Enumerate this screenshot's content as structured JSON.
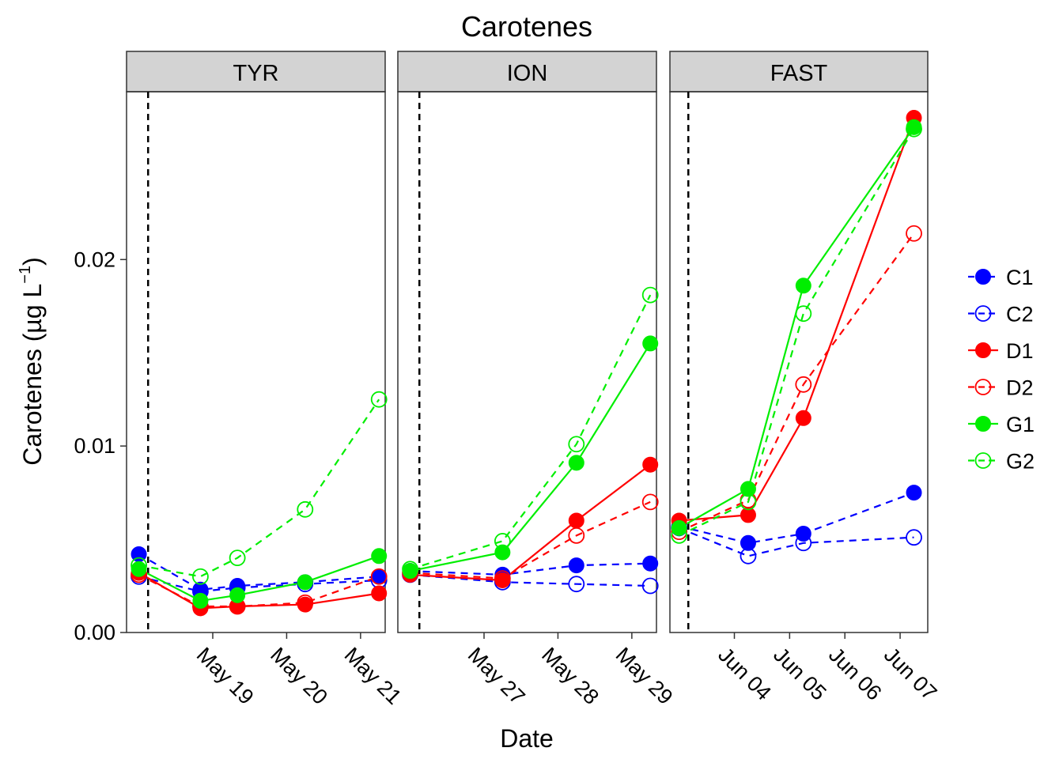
{
  "chart_data": {
    "type": "line",
    "title": "Carotenes",
    "xlabel": "Date",
    "ylabel": "Carotenes (µg L⁻¹)",
    "ylabel_main": "Carotenes (",
    "ylabel_unit": "µg L",
    "ylabel_exp": "−1",
    "ylabel_close": ")",
    "ylim": [
      0,
      0.029
    ],
    "yticks": [
      {
        "value": 0.0,
        "label": "0.00"
      },
      {
        "value": 0.01,
        "label": "0.01"
      },
      {
        "value": 0.02,
        "label": "0.02"
      }
    ],
    "grid": false,
    "legend_position": "right",
    "colors": {
      "C": "#0000ff",
      "D": "#ff0000",
      "G": "#00ee00"
    },
    "legend": [
      {
        "name": "C1",
        "color": "#0000ff",
        "filled": true,
        "dashed": true
      },
      {
        "name": "C2",
        "color": "#0000ff",
        "filled": false,
        "dashed": true
      },
      {
        "name": "D1",
        "color": "#ff0000",
        "filled": true,
        "dashed": false
      },
      {
        "name": "D2",
        "color": "#ff0000",
        "filled": false,
        "dashed": true
      },
      {
        "name": "G1",
        "color": "#00ee00",
        "filled": true,
        "dashed": false
      },
      {
        "name": "G2",
        "color": "#00ee00",
        "filled": false,
        "dashed": true
      }
    ],
    "panels": [
      {
        "label": "TYR",
        "xlim": [
          "2017-05-17T20:00",
          "2017-05-21T08:00"
        ],
        "xticks": [
          {
            "value": "2017-05-19T00:00",
            "label": "May 19"
          },
          {
            "value": "2017-05-20T00:00",
            "label": "May 20"
          },
          {
            "value": "2017-05-21T00:00",
            "label": "May 21"
          }
        ],
        "vline": "2017-05-18T03:00",
        "series": [
          {
            "name": "C1",
            "x": [
              "2017-05-18T00:00",
              "2017-05-18T20:00",
              "2017-05-19T08:00",
              "2017-05-20T06:00",
              "2017-05-21T06:00"
            ],
            "y": [
              0.0042,
              0.0023,
              0.0025,
              0.0027,
              0.003
            ]
          },
          {
            "name": "C2",
            "x": [
              "2017-05-18T00:00",
              "2017-05-18T20:00",
              "2017-05-19T08:00",
              "2017-05-20T06:00",
              "2017-05-21T06:00"
            ],
            "y": [
              0.003,
              0.0022,
              0.0024,
              0.0026,
              0.0028
            ]
          },
          {
            "name": "D1",
            "x": [
              "2017-05-18T00:00",
              "2017-05-18T20:00",
              "2017-05-19T08:00",
              "2017-05-20T06:00",
              "2017-05-21T06:00"
            ],
            "y": [
              0.0032,
              0.0013,
              0.0014,
              0.0015,
              0.0021
            ]
          },
          {
            "name": "D2",
            "x": [
              "2017-05-18T00:00",
              "2017-05-18T20:00",
              "2017-05-19T08:00",
              "2017-05-20T06:00",
              "2017-05-21T06:00"
            ],
            "y": [
              0.0031,
              0.0014,
              0.0014,
              0.0016,
              0.003
            ]
          },
          {
            "name": "G1",
            "x": [
              "2017-05-18T00:00",
              "2017-05-18T20:00",
              "2017-05-19T08:00",
              "2017-05-20T06:00",
              "2017-05-21T06:00"
            ],
            "y": [
              0.0034,
              0.0017,
              0.002,
              0.0027,
              0.0041
            ]
          },
          {
            "name": "G2",
            "x": [
              "2017-05-18T00:00",
              "2017-05-18T20:00",
              "2017-05-19T08:00",
              "2017-05-20T06:00",
              "2017-05-21T06:00"
            ],
            "y": [
              0.0036,
              0.003,
              0.004,
              0.0066,
              0.0125
            ]
          }
        ]
      },
      {
        "label": "ION",
        "xlim": [
          "2017-05-25T20:00",
          "2017-05-29T08:00"
        ],
        "xticks": [
          {
            "value": "2017-05-27T00:00",
            "label": "May 27"
          },
          {
            "value": "2017-05-28T00:00",
            "label": "May 28"
          },
          {
            "value": "2017-05-29T00:00",
            "label": "May 29"
          }
        ],
        "vline": "2017-05-26T03:00",
        "series": [
          {
            "name": "C1",
            "x": [
              "2017-05-26T00:00",
              "2017-05-27T06:00",
              "2017-05-28T06:00",
              "2017-05-29T06:00"
            ],
            "y": [
              0.0033,
              0.0031,
              0.0036,
              0.0037
            ]
          },
          {
            "name": "C2",
            "x": [
              "2017-05-26T00:00",
              "2017-05-27T06:00",
              "2017-05-28T06:00",
              "2017-05-29T06:00"
            ],
            "y": [
              0.0031,
              0.0027,
              0.0026,
              0.0025
            ]
          },
          {
            "name": "D1",
            "x": [
              "2017-05-26T00:00",
              "2017-05-27T06:00",
              "2017-05-28T06:00",
              "2017-05-29T06:00"
            ],
            "y": [
              0.0031,
              0.0028,
              0.006,
              0.009
            ]
          },
          {
            "name": "D2",
            "x": [
              "2017-05-26T00:00",
              "2017-05-27T06:00",
              "2017-05-28T06:00",
              "2017-05-29T06:00"
            ],
            "y": [
              0.0032,
              0.0029,
              0.0052,
              0.007
            ]
          },
          {
            "name": "G1",
            "x": [
              "2017-05-26T00:00",
              "2017-05-27T06:00",
              "2017-05-28T06:00",
              "2017-05-29T06:00"
            ],
            "y": [
              0.0033,
              0.0043,
              0.0091,
              0.0155
            ]
          },
          {
            "name": "G2",
            "x": [
              "2017-05-26T00:00",
              "2017-05-27T06:00",
              "2017-05-28T06:00",
              "2017-05-29T06:00"
            ],
            "y": [
              0.0034,
              0.0049,
              0.0101,
              0.0181
            ]
          }
        ]
      },
      {
        "label": "FAST",
        "xlim": [
          "2017-06-02T20:00",
          "2017-06-07T12:00"
        ],
        "xticks": [
          {
            "value": "2017-06-04T00:00",
            "label": "Jun 04"
          },
          {
            "value": "2017-06-05T00:00",
            "label": "Jun 05"
          },
          {
            "value": "2017-06-06T00:00",
            "label": "Jun 06"
          },
          {
            "value": "2017-06-07T00:00",
            "label": "Jun 07"
          }
        ],
        "vline": "2017-06-03T04:00",
        "series": [
          {
            "name": "C1",
            "x": [
              "2017-06-03T00:00",
              "2017-06-04T06:00",
              "2017-06-05T06:00",
              "2017-06-07T06:00"
            ],
            "y": [
              0.0057,
              0.0048,
              0.0053,
              0.0075
            ]
          },
          {
            "name": "C2",
            "x": [
              "2017-06-03T00:00",
              "2017-06-04T06:00",
              "2017-06-05T06:00",
              "2017-06-07T06:00"
            ],
            "y": [
              0.0056,
              0.0041,
              0.0048,
              0.0051
            ]
          },
          {
            "name": "D1",
            "x": [
              "2017-06-03T00:00",
              "2017-06-04T06:00",
              "2017-06-05T06:00",
              "2017-06-07T06:00"
            ],
            "y": [
              0.006,
              0.0063,
              0.0115,
              0.0276
            ]
          },
          {
            "name": "D2",
            "x": [
              "2017-06-03T00:00",
              "2017-06-04T06:00",
              "2017-06-05T06:00",
              "2017-06-07T06:00"
            ],
            "y": [
              0.0054,
              0.0071,
              0.0133,
              0.0214
            ]
          },
          {
            "name": "G1",
            "x": [
              "2017-06-03T00:00",
              "2017-06-04T06:00",
              "2017-06-05T06:00",
              "2017-06-07T06:00"
            ],
            "y": [
              0.0056,
              0.0077,
              0.0186,
              0.0271
            ]
          },
          {
            "name": "G2",
            "x": [
              "2017-06-03T00:00",
              "2017-06-04T06:00",
              "2017-06-05T06:00",
              "2017-06-07T06:00"
            ],
            "y": [
              0.0052,
              0.007,
              0.0171,
              0.027
            ]
          }
        ]
      }
    ]
  }
}
